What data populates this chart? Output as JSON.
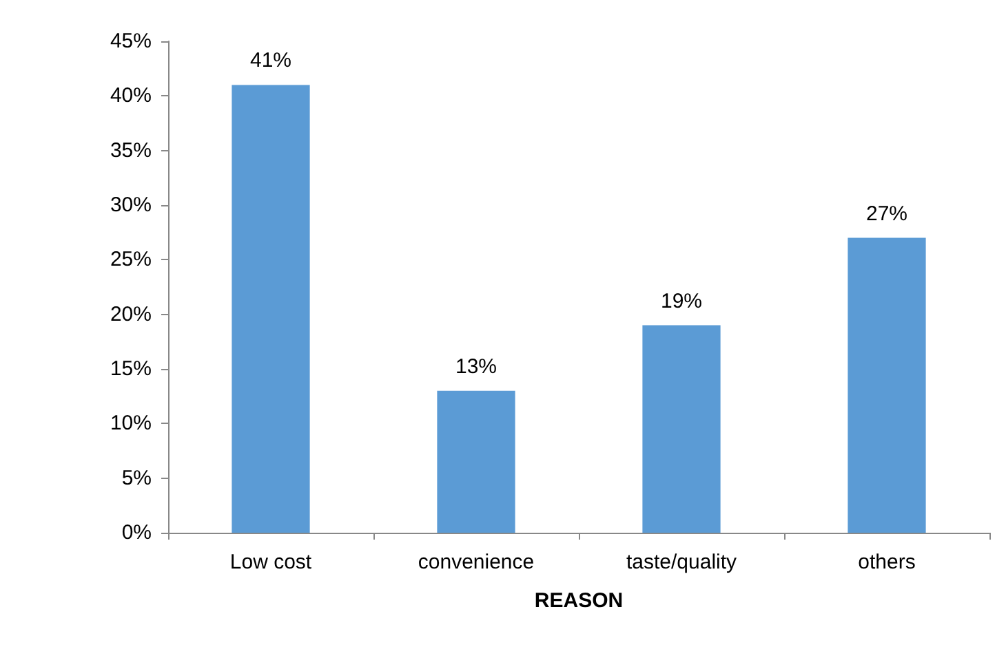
{
  "chart_data": {
    "type": "bar",
    "xlabel": "REASON",
    "categories": [
      "Low cost",
      "convenience",
      "taste/quality",
      "others"
    ],
    "values": [
      41,
      13,
      19,
      27
    ],
    "color": "#5b9bd5",
    "value_labels": [
      "41%",
      "13%",
      "19%",
      "27%"
    ],
    "ylim": [
      0,
      45
    ],
    "yticks": [
      {
        "value": 0,
        "label": "0%"
      },
      {
        "value": 5,
        "label": "5%"
      },
      {
        "value": 10,
        "label": "10%"
      },
      {
        "value": 15,
        "label": "15%"
      },
      {
        "value": 20,
        "label": "20%"
      },
      {
        "value": 25,
        "label": "25%"
      },
      {
        "value": 30,
        "label": "30%"
      },
      {
        "value": 35,
        "label": "35%"
      },
      {
        "value": 40,
        "label": "40%"
      },
      {
        "value": 45,
        "label": "45%"
      }
    ],
    "grid": false
  }
}
